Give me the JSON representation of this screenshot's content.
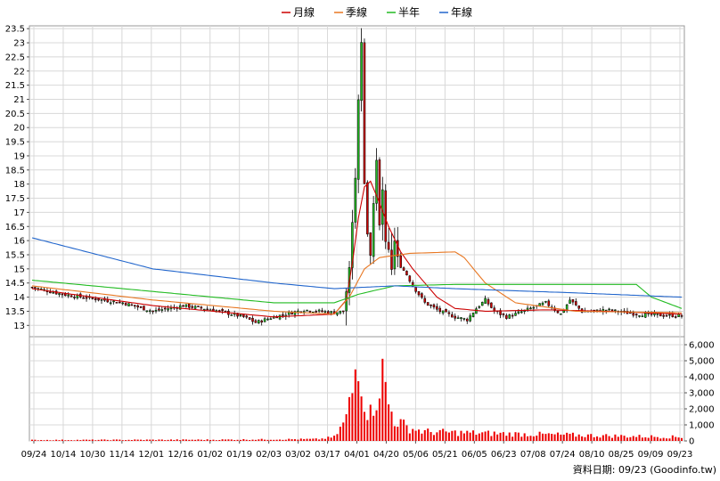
{
  "chart_data": {
    "type": "candlestick",
    "legend": [
      {
        "name": "月線",
        "color": "#cc0000"
      },
      {
        "name": "季線",
        "color": "#e87722"
      },
      {
        "name": "半年",
        "color": "#22bb22"
      },
      {
        "name": "年線",
        "color": "#2266cc"
      }
    ],
    "price_axis": {
      "ylim": [
        12.6,
        23.6
      ],
      "ticks": [
        "13",
        "13.5",
        "14",
        "14.5",
        "15",
        "15.5",
        "16",
        "16.5",
        "17",
        "17.5",
        "18",
        "18.5",
        "19",
        "19.5",
        "20",
        "20.5",
        "21",
        "21.5",
        "22",
        "22.5",
        "23",
        "23.5"
      ]
    },
    "volume_axis": {
      "ylim": [
        0,
        6500
      ],
      "ticks": [
        "0",
        "1,000",
        "2,000",
        "3,000",
        "4,000",
        "5,000",
        "6,000"
      ]
    },
    "x_ticks": [
      "09/24",
      "10/14",
      "10/30",
      "11/14",
      "12/01",
      "12/16",
      "01/02",
      "01/19",
      "02/03",
      "03/02",
      "03/17",
      "04/01",
      "04/20",
      "05/06",
      "05/21",
      "06/05",
      "06/23",
      "07/08",
      "07/24",
      "08/10",
      "08/25",
      "09/09",
      "09/23"
    ],
    "grid": true,
    "up_color": "#22bb22",
    "down_color": "#cc0000",
    "volume_color": "#ee0000",
    "credit": "資料日期: 09/23  (Goodinfo.tw)",
    "close_anchors": [
      [
        0,
        14.35
      ],
      [
        10,
        14.1
      ],
      [
        20,
        13.95
      ],
      [
        30,
        13.8
      ],
      [
        40,
        13.5
      ],
      [
        50,
        13.7
      ],
      [
        60,
        13.55
      ],
      [
        70,
        13.3
      ],
      [
        74,
        13.1
      ],
      [
        80,
        13.3
      ],
      [
        90,
        13.55
      ],
      [
        100,
        13.45
      ],
      [
        103,
        13.5
      ],
      [
        104,
        14.2
      ],
      [
        105,
        15.0
      ],
      [
        106,
        16.6
      ],
      [
        107,
        18.2
      ],
      [
        108,
        21.0
      ],
      [
        109,
        23.0
      ],
      [
        110,
        18.0
      ],
      [
        111,
        16.2
      ],
      [
        112,
        15.5
      ],
      [
        113,
        17.3
      ],
      [
        114,
        18.9
      ],
      [
        115,
        16.5
      ],
      [
        116,
        17.8
      ],
      [
        117,
        16.0
      ],
      [
        118,
        15.7
      ],
      [
        119,
        15.0
      ],
      [
        120,
        16.0
      ],
      [
        121,
        15.4
      ],
      [
        122,
        15.1
      ],
      [
        124,
        14.8
      ],
      [
        126,
        14.4
      ],
      [
        128,
        14.1
      ],
      [
        130,
        13.8
      ],
      [
        135,
        13.5
      ],
      [
        140,
        13.3
      ],
      [
        144,
        13.2
      ],
      [
        147,
        13.6
      ],
      [
        150,
        13.9
      ],
      [
        153,
        13.5
      ],
      [
        157,
        13.3
      ],
      [
        160,
        13.4
      ],
      [
        165,
        13.6
      ],
      [
        170,
        13.8
      ],
      [
        175,
        13.4
      ],
      [
        178,
        13.9
      ],
      [
        182,
        13.5
      ],
      [
        186,
        13.5
      ],
      [
        190,
        13.55
      ],
      [
        200,
        13.4
      ],
      [
        210,
        13.35
      ],
      [
        215,
        13.35
      ]
    ],
    "ma_series": {
      "月線": [
        [
          0,
          14.3
        ],
        [
          20,
          14.0
        ],
        [
          40,
          13.7
        ],
        [
          60,
          13.5
        ],
        [
          80,
          13.3
        ],
        [
          100,
          13.4
        ],
        [
          104,
          13.9
        ],
        [
          106,
          15.2
        ],
        [
          108,
          16.8
        ],
        [
          110,
          17.9
        ],
        [
          112,
          18.1
        ],
        [
          114,
          17.6
        ],
        [
          118,
          16.5
        ],
        [
          122,
          15.6
        ],
        [
          126,
          15.0
        ],
        [
          130,
          14.5
        ],
        [
          134,
          14.0
        ],
        [
          140,
          13.6
        ],
        [
          150,
          13.5
        ],
        [
          170,
          13.55
        ],
        [
          190,
          13.5
        ],
        [
          215,
          13.4
        ]
      ],
      "季線": [
        [
          0,
          14.4
        ],
        [
          40,
          13.9
        ],
        [
          80,
          13.5
        ],
        [
          100,
          13.4
        ],
        [
          105,
          14.0
        ],
        [
          110,
          15.0
        ],
        [
          115,
          15.4
        ],
        [
          125,
          15.55
        ],
        [
          140,
          15.6
        ],
        [
          143,
          15.4
        ],
        [
          150,
          14.5
        ],
        [
          160,
          13.8
        ],
        [
          180,
          13.5
        ],
        [
          215,
          13.45
        ]
      ],
      "半年": [
        [
          0,
          14.6
        ],
        [
          40,
          14.2
        ],
        [
          80,
          13.8
        ],
        [
          100,
          13.8
        ],
        [
          108,
          14.1
        ],
        [
          120,
          14.4
        ],
        [
          140,
          14.45
        ],
        [
          200,
          14.45
        ],
        [
          205,
          14.0
        ],
        [
          215,
          13.6
        ]
      ],
      "年線": [
        [
          0,
          16.1
        ],
        [
          40,
          15.0
        ],
        [
          80,
          14.5
        ],
        [
          100,
          14.3
        ],
        [
          120,
          14.4
        ],
        [
          140,
          14.3
        ],
        [
          180,
          14.15
        ],
        [
          215,
          14.0
        ]
      ]
    },
    "volume_anchors": [
      [
        0,
        60
      ],
      [
        60,
        80
      ],
      [
        95,
        120
      ],
      [
        100,
        250
      ],
      [
        102,
        800
      ],
      [
        104,
        1500
      ],
      [
        106,
        3200
      ],
      [
        108,
        6100
      ],
      [
        110,
        2600
      ],
      [
        112,
        1800
      ],
      [
        114,
        3000
      ],
      [
        116,
        4400
      ],
      [
        118,
        2400
      ],
      [
        120,
        1400
      ],
      [
        124,
        900
      ],
      [
        130,
        600
      ],
      [
        150,
        500
      ],
      [
        200,
        300
      ],
      [
        215,
        250
      ]
    ],
    "n_bars": 216
  }
}
